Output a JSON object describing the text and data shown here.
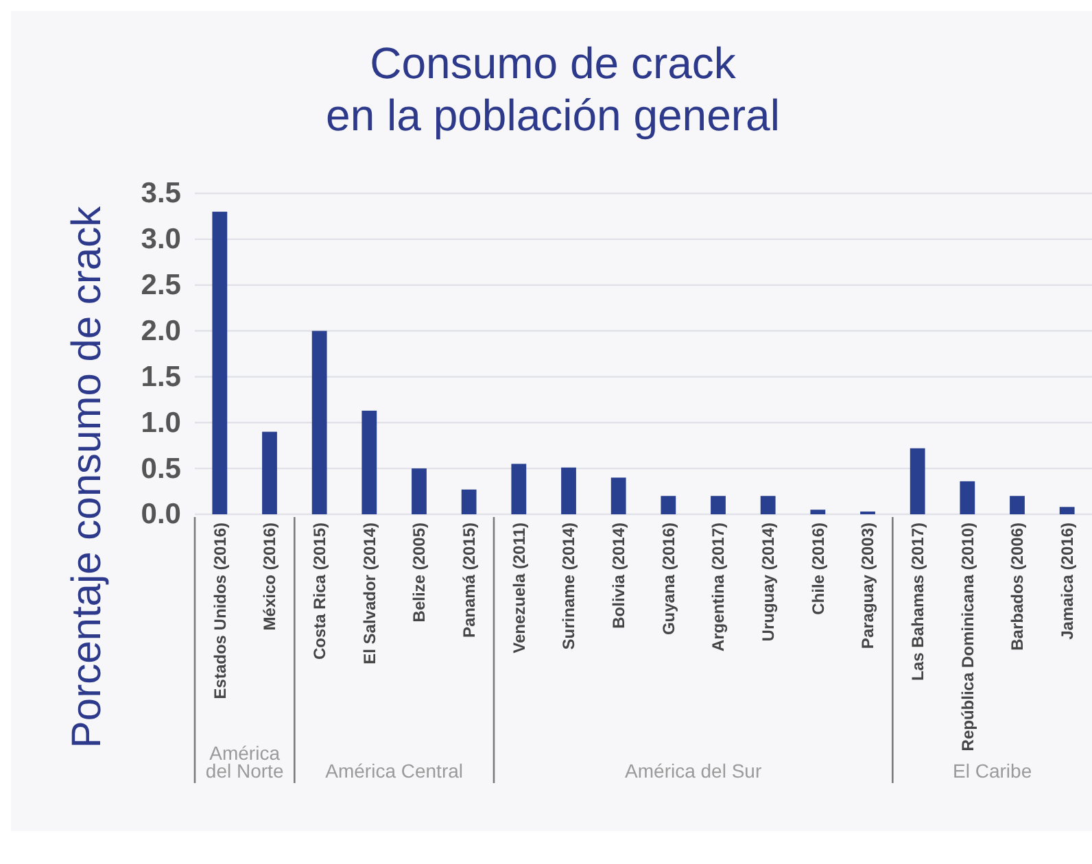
{
  "chart_data": {
    "type": "bar",
    "title": "Consumo de crack\nen la población general",
    "ylabel": "Porcentaje consumo de crack",
    "categories": [
      "Estados Unidos (2016)",
      "México (2016)",
      "Costa Rica (2015)",
      "El Salvador (2014)",
      "Belize (2005)",
      "Panamá (2015)",
      "Venezuela (2011)",
      "Suriname (2014)",
      "Bolivia (2014)",
      "Guyana (2016)",
      "Argentina (2017)",
      "Uruguay (2014)",
      "Chile (2016)",
      "Paraguay (2003)",
      "Las Bahamas (2017)",
      "República Dominicana (2010)",
      "Barbados (2006)",
      "Jamaica (2016)"
    ],
    "values": [
      3.3,
      0.9,
      2.0,
      1.13,
      0.5,
      0.27,
      0.55,
      0.51,
      0.4,
      0.2,
      0.2,
      0.2,
      0.05,
      0.03,
      0.72,
      0.36,
      0.2,
      0.08
    ],
    "color": "#28408f",
    "ylim": [
      0,
      3.5
    ],
    "yticks": [
      {
        "value": 0,
        "label": "0.0"
      },
      0.5,
      {
        "value": 1,
        "label": "1.0"
      },
      1.5,
      {
        "value": 2,
        "label": "2.0"
      },
      2.5,
      {
        "value": 3,
        "label": "3.0"
      },
      3.5
    ],
    "grid": "y",
    "annotations": [
      "América del Norte",
      "América Central",
      "América del Sur",
      "El Caribe"
    ]
  }
}
